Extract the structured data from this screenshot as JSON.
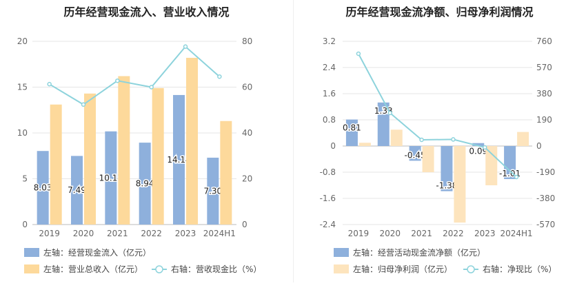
{
  "chart_data": [
    {
      "type": "bar",
      "title": "历年经营现金流入、营业收入情况",
      "categories": [
        "2019",
        "2020",
        "2021",
        "2022",
        "2023",
        "2024H1"
      ],
      "y_left": {
        "min": 0,
        "max": 20,
        "ticks": [
          "0",
          "5",
          "10",
          "15",
          "20"
        ]
      },
      "y_right": {
        "min": 0,
        "max": 80,
        "ticks": [
          "0",
          "20",
          "40",
          "60",
          "80"
        ]
      },
      "series": [
        {
          "name": "左轴：经营现金流入（亿元）",
          "kind": "bar",
          "axis": "left",
          "color": "#8eb0dc",
          "values": [
            8.03,
            7.49,
            10.17,
            8.94,
            14.14,
            7.3
          ],
          "labels": [
            "8.03",
            "7.49",
            "10.17",
            "8.94",
            "14.14",
            "7.30"
          ]
        },
        {
          "name": "左轴：营业总收入（亿元）",
          "kind": "bar",
          "axis": "left",
          "color": "#fdd99b",
          "values": [
            13.1,
            14.3,
            16.2,
            14.9,
            18.2,
            11.3
          ]
        },
        {
          "name": "右轴：营收现金比（%）",
          "kind": "line",
          "axis": "right",
          "color": "#8dd3dc",
          "values": [
            61.3,
            52.4,
            62.8,
            60.0,
            77.7,
            64.6
          ]
        }
      ],
      "legend": [
        {
          "row": 1,
          "label": "左轴：经营现金流入（亿元）",
          "symbol": "rect",
          "color": "#8eb0dc"
        },
        {
          "row": 2,
          "label": "左轴：营业总收入（亿元）",
          "symbol": "rect",
          "color": "#fdd99b"
        },
        {
          "row": 2,
          "label": "右轴：营收现金比（%）",
          "symbol": "line",
          "color": "#8dd3dc"
        }
      ]
    },
    {
      "type": "bar",
      "title": "历年经营现金流净额、归母净利润情况",
      "categories": [
        "2019",
        "2020",
        "2021",
        "2022",
        "2023",
        "2024H1"
      ],
      "y_left": {
        "min": -2.4,
        "max": 3.2,
        "ticks": [
          "-2.4",
          "-1.6",
          "-0.8",
          "0",
          "0.8",
          "1.6",
          "2.4",
          "3.2"
        ]
      },
      "y_right": {
        "min": -570,
        "max": 760,
        "ticks": [
          "-570",
          "-380",
          "-190",
          "0",
          "190",
          "380",
          "570",
          "760"
        ]
      },
      "series": [
        {
          "name": "左轴：经营活动现金流净额（亿元）",
          "kind": "bar",
          "axis": "left",
          "color": "#8eb0dc",
          "values": [
            0.81,
            1.33,
            -0.45,
            -1.38,
            0.09,
            -1.01
          ],
          "labels": [
            "0.81",
            "1.33",
            "-0.45",
            "-1.38",
            "0.09",
            "-1.01"
          ]
        },
        {
          "name": "左轴：归母净利润（亿元）",
          "kind": "bar",
          "axis": "left",
          "color": "#fde4bd",
          "values": [
            0.1,
            0.5,
            -0.8,
            -2.34,
            -1.2,
            0.43
          ]
        },
        {
          "name": "右轴：净现比（%）",
          "kind": "line",
          "axis": "right",
          "color": "#8dd3dc",
          "values": [
            670,
            240,
            45,
            48,
            -10,
            -225
          ]
        }
      ],
      "legend": [
        {
          "row": 1,
          "label": "左轴：经营活动现金流净额（亿元）",
          "symbol": "rect",
          "color": "#8eb0dc"
        },
        {
          "row": 2,
          "label": "左轴：归母净利润（亿元）",
          "symbol": "rect",
          "color": "#fde4bd"
        },
        {
          "row": 2,
          "label": "右轴：净现比（%）",
          "symbol": "line",
          "color": "#8dd3dc"
        }
      ]
    }
  ]
}
